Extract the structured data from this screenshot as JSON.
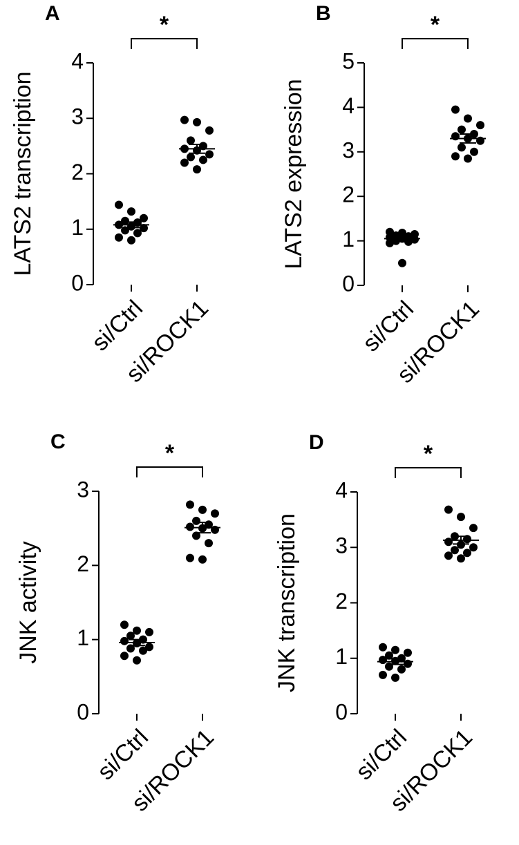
{
  "chart_data": [
    {
      "type": "dotplot",
      "panel_label": "A",
      "y_label": "LATS2 transcription",
      "annotation": "*",
      "categories": [
        "si/Ctrl",
        "si/ROCK1"
      ],
      "color": "#000000",
      "values": [
        [
          1.44,
          1.32,
          1.2,
          1.15,
          1.12,
          1.08,
          1.05,
          1.02,
          0.98,
          0.93,
          0.85,
          0.8
        ],
        [
          2.97,
          2.93,
          2.78,
          2.6,
          2.5,
          2.45,
          2.42,
          2.35,
          2.3,
          2.25,
          2.2,
          2.08
        ]
      ],
      "means": [
        1.08,
        2.45
      ],
      "errors": [
        0.05,
        0.08
      ],
      "ylim": [
        0,
        4
      ],
      "yticks": [
        0,
        1,
        2,
        3,
        4
      ]
    },
    {
      "type": "dotplot",
      "panel_label": "B",
      "y_label": "LATS2 expression",
      "annotation": "*",
      "categories": [
        "si/Ctrl",
        "si/ROCK1"
      ],
      "color": "#000000",
      "values": [
        [
          1.2,
          1.18,
          1.15,
          1.12,
          1.1,
          1.08,
          1.05,
          1.03,
          1.0,
          0.98,
          0.95,
          0.5
        ],
        [
          3.95,
          3.75,
          3.6,
          3.5,
          3.4,
          3.35,
          3.3,
          3.25,
          3.1,
          3.0,
          2.9,
          2.85
        ]
      ],
      "means": [
        1.05,
        3.3
      ],
      "errors": [
        0.05,
        0.1
      ],
      "ylim": [
        0,
        5
      ],
      "yticks": [
        0,
        1,
        2,
        3,
        4,
        5
      ]
    },
    {
      "type": "dotplot",
      "panel_label": "C",
      "y_label": "JNK activity",
      "annotation": "*",
      "categories": [
        "si/Ctrl",
        "si/ROCK1"
      ],
      "color": "#000000",
      "values": [
        [
          1.2,
          1.12,
          1.1,
          1.05,
          1.0,
          0.98,
          0.95,
          0.9,
          0.88,
          0.85,
          0.78,
          0.72
        ],
        [
          2.82,
          2.75,
          2.7,
          2.6,
          2.55,
          2.52,
          2.5,
          2.48,
          2.4,
          2.3,
          2.1,
          2.08
        ]
      ],
      "means": [
        0.96,
        2.51
      ],
      "errors": [
        0.04,
        0.07
      ],
      "ylim": [
        0,
        3
      ],
      "yticks": [
        0,
        1,
        2,
        3
      ]
    },
    {
      "type": "dotplot",
      "panel_label": "D",
      "y_label": "JNK transcription",
      "annotation": "*",
      "categories": [
        "si/Ctrl",
        "si/ROCK1"
      ],
      "color": "#000000",
      "values": [
        [
          1.2,
          1.15,
          1.1,
          1.05,
          1.0,
          0.97,
          0.95,
          0.9,
          0.85,
          0.8,
          0.7,
          0.65
        ],
        [
          3.68,
          3.55,
          3.35,
          3.2,
          3.15,
          3.1,
          3.05,
          3.0,
          2.95,
          2.9,
          2.85,
          2.8
        ]
      ],
      "means": [
        0.94,
        3.13
      ],
      "errors": [
        0.05,
        0.07
      ],
      "ylim": [
        0,
        4
      ],
      "yticks": [
        0,
        1,
        2,
        3,
        4
      ]
    }
  ]
}
